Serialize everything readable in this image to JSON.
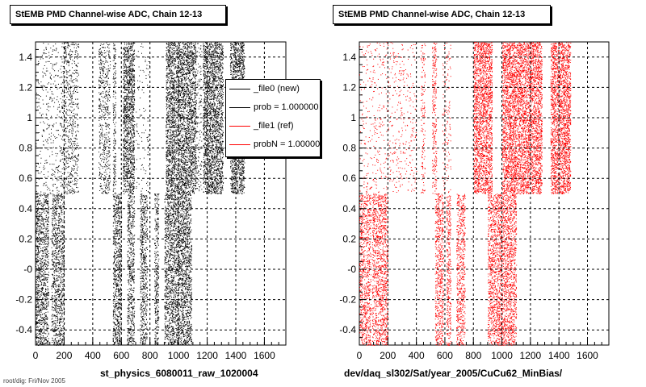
{
  "chart_data": [
    {
      "type": "scatter",
      "title": "StEMB PMD Channel-wise ADC, Chain 12-13",
      "xlabel": "st_physics_6080011_raw_1020004",
      "ylabel": "",
      "xlim": [
        0,
        1750
      ],
      "ylim": [
        -0.5,
        1.5
      ],
      "x_ticks": [
        0,
        200,
        400,
        600,
        800,
        1000,
        1200,
        1400,
        1600
      ],
      "y_ticks": [
        -0.4,
        -0.2,
        0,
        0.2,
        0.4,
        0.6,
        0.8,
        1,
        1.2,
        1.4
      ],
      "y_tick_labels": [
        "-0.4",
        "-0.2",
        "-0",
        "0.2",
        "0.4",
        "0.6",
        "0.8",
        "1",
        "1.2",
        "1.4"
      ],
      "grid": true,
      "marker_color": "#000000",
      "band_upper": [
        0.5,
        1.5
      ],
      "band_lower": [
        -0.5,
        0.5
      ],
      "upper_density": [
        {
          "x": [
            0,
            180
          ],
          "d": 0.1
        },
        {
          "x": [
            180,
            300
          ],
          "d": 0.3
        },
        {
          "x": [
            440,
            520
          ],
          "d": 0.35
        },
        {
          "x": [
            540,
            560
          ],
          "d": 0.5
        },
        {
          "x": [
            610,
            690
          ],
          "d": 0.85
        },
        {
          "x": [
            700,
            800
          ],
          "d": 0.06
        },
        {
          "x": [
            910,
            1120
          ],
          "d": 0.8
        },
        {
          "x": [
            1120,
            1160
          ],
          "d": 0.2
        },
        {
          "x": [
            1170,
            1310
          ],
          "d": 0.85
        },
        {
          "x": [
            1360,
            1460
          ],
          "d": 0.85
        }
      ],
      "lower_density": [
        {
          "x": [
            0,
            90
          ],
          "d": 0.65
        },
        {
          "x": [
            110,
            200
          ],
          "d": 0.6
        },
        {
          "x": [
            540,
            600
          ],
          "d": 0.7
        },
        {
          "x": [
            640,
            690
          ],
          "d": 0.6
        },
        {
          "x": [
            730,
            780
          ],
          "d": 0.6
        },
        {
          "x": [
            830,
            860
          ],
          "d": 0.6
        },
        {
          "x": [
            900,
            1090
          ],
          "d": 0.7
        }
      ],
      "legend": [
        {
          "label": "_file0 (new)",
          "color": "#000000"
        },
        {
          "label": "prob = 1.000000",
          "color": "#000000"
        },
        {
          "label": "_file1 (ref)",
          "color": "#ff0000"
        },
        {
          "label": "probN = 1.000000",
          "color": "#ff0000"
        }
      ],
      "legend_position": "top-right"
    },
    {
      "type": "scatter",
      "title": "StEMB PMD Channel-wise ADC, Chain 12-13",
      "xlabel": "dev/daq_sl302/Sat/year_2005/CuCu62_MinBias/",
      "ylabel": "",
      "xlim": [
        0,
        1750
      ],
      "ylim": [
        -0.5,
        1.5
      ],
      "x_ticks": [
        0,
        200,
        400,
        600,
        800,
        1000,
        1200,
        1400,
        1600
      ],
      "y_ticks": [
        -0.4,
        -0.2,
        0,
        0.2,
        0.4,
        0.6,
        0.8,
        1,
        1.2,
        1.4
      ],
      "y_tick_labels": [
        "-0.4",
        "-0.2",
        "-0",
        "0.2",
        "0.4",
        "0.6",
        "0.8",
        "1",
        "1.2",
        "1.4"
      ],
      "grid": true,
      "marker_color": "#ff0000",
      "band_upper": [
        0.5,
        1.5
      ],
      "band_lower": [
        -0.5,
        0.5
      ],
      "upper_density": [
        {
          "x": [
            0,
            400
          ],
          "d": 0.08
        },
        {
          "x": [
            430,
            460
          ],
          "d": 0.25
        },
        {
          "x": [
            510,
            540
          ],
          "d": 0.45
        },
        {
          "x": [
            580,
            640
          ],
          "d": 0.12
        },
        {
          "x": [
            800,
            930
          ],
          "d": 0.85
        },
        {
          "x": [
            1000,
            1280
          ],
          "d": 0.85
        },
        {
          "x": [
            1340,
            1480
          ],
          "d": 0.85
        }
      ],
      "lower_density": [
        {
          "x": [
            0,
            80
          ],
          "d": 0.55
        },
        {
          "x": [
            90,
            200
          ],
          "d": 0.6
        },
        {
          "x": [
            530,
            590
          ],
          "d": 0.55
        },
        {
          "x": [
            610,
            640
          ],
          "d": 0.6
        },
        {
          "x": [
            680,
            740
          ],
          "d": 0.55
        },
        {
          "x": [
            900,
            1100
          ],
          "d": 0.65
        }
      ]
    }
  ],
  "footer": "root/dig: Fri/Nov 2005"
}
